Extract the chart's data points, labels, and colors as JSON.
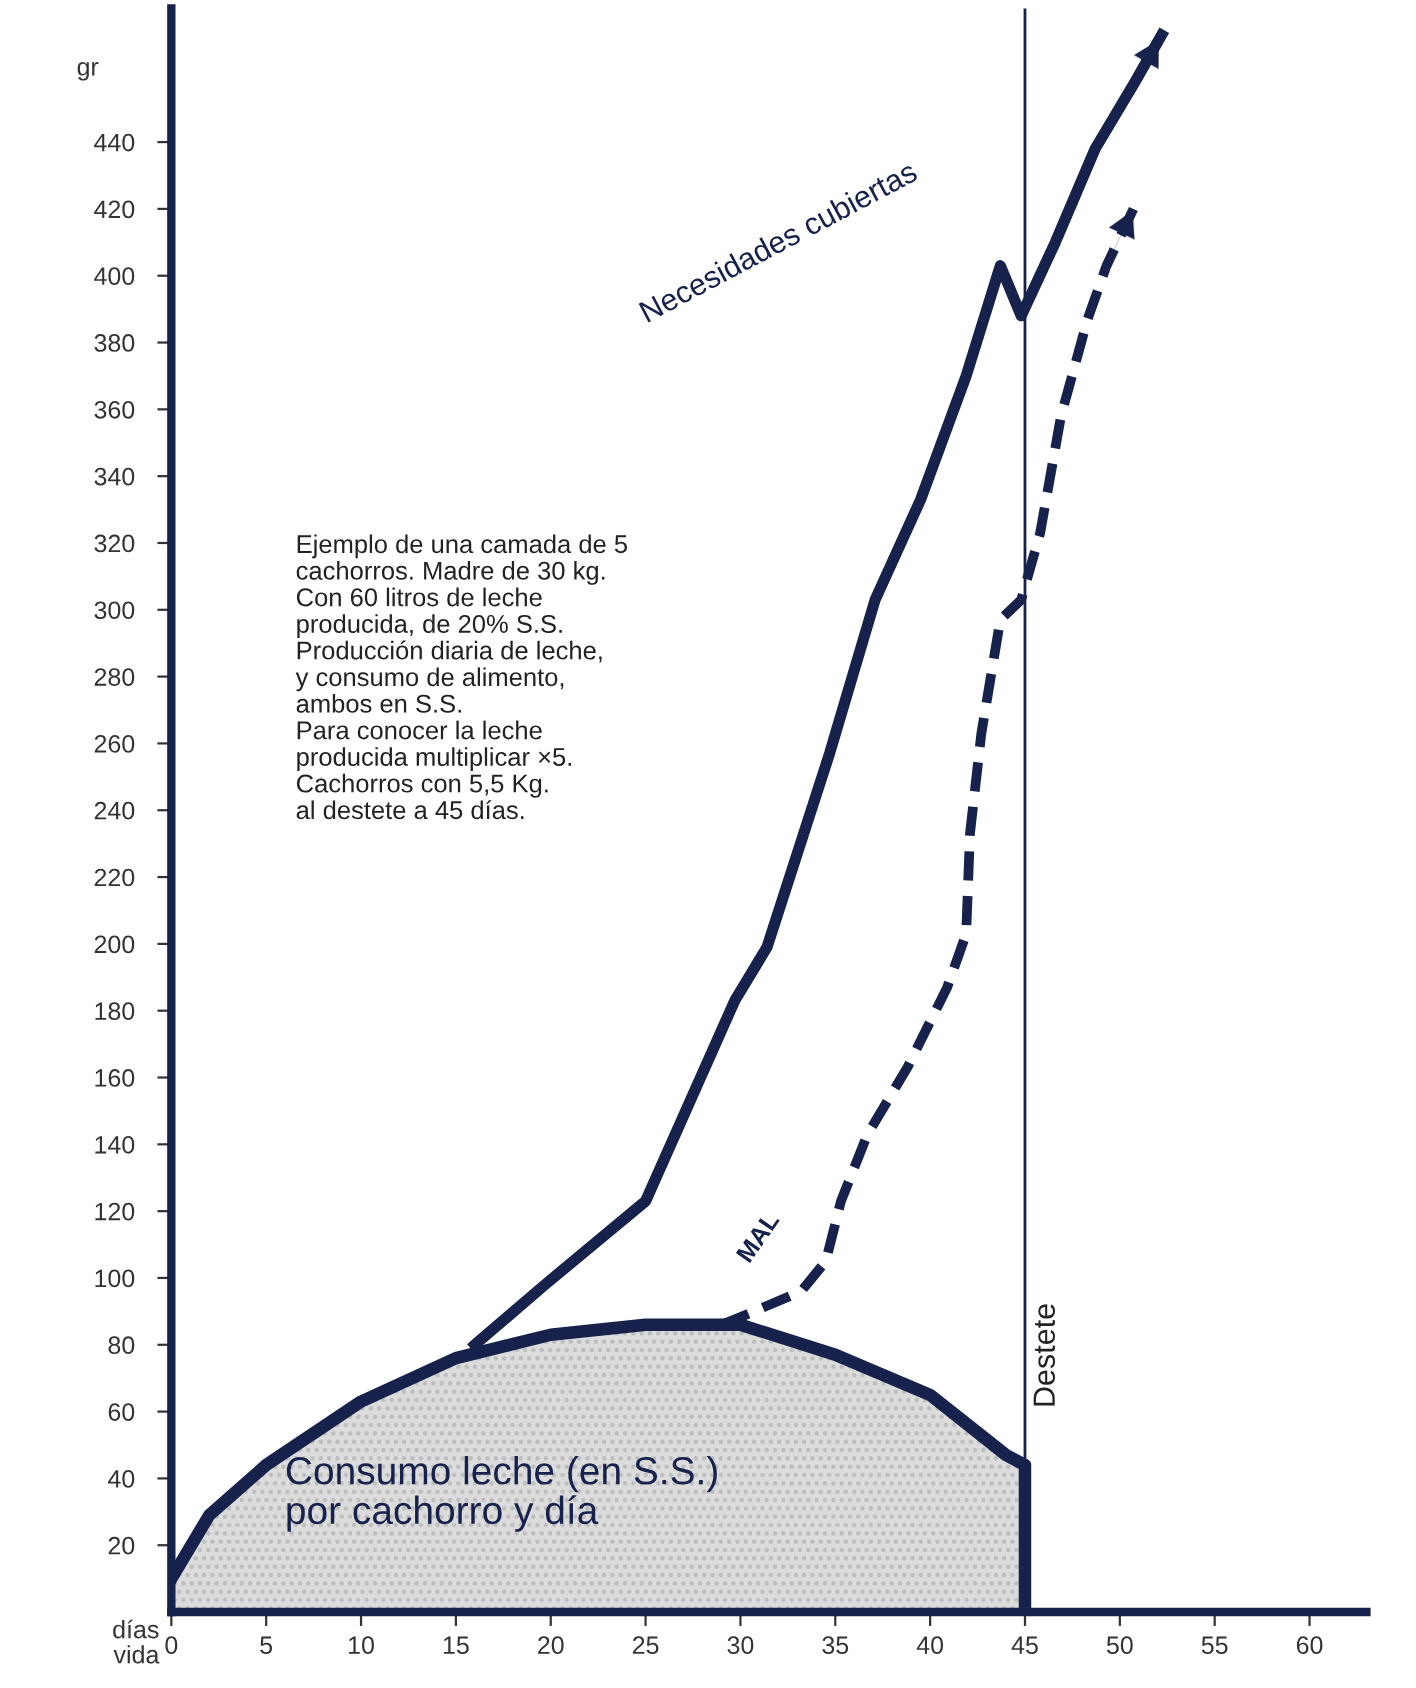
{
  "chart_data": {
    "type": "line",
    "xlabel": "días\nvida",
    "ylabel": "gr",
    "xlim": [
      0,
      63
    ],
    "xticks": [
      0,
      5,
      10,
      15,
      20,
      25,
      30,
      35,
      40,
      45,
      50,
      55,
      60
    ],
    "ylim": [
      0,
      480
    ],
    "yticks": [
      20,
      40,
      60,
      80,
      100,
      120,
      140,
      160,
      180,
      200,
      220,
      240,
      260,
      280,
      300,
      320,
      340,
      360,
      380,
      400,
      420,
      440
    ],
    "series": [
      {
        "name": "Consumo leche (en S.S.)\npor cachorro y día",
        "type": "area",
        "color": "#16224c",
        "x": [
          0,
          2,
          5,
          10,
          15,
          20,
          25,
          30,
          35,
          40,
          44,
          45,
          45
        ],
        "values": [
          10,
          29,
          44,
          63,
          76,
          83,
          86,
          86,
          77,
          65,
          47,
          44,
          0
        ]
      },
      {
        "name": "Necesidades cubiertas",
        "line_style": "solid",
        "color": "#16224c",
        "x": [
          16,
          19.7,
          25,
          29.7,
          31.4,
          34.7,
          37.1,
          39.5,
          41.9,
          43.7,
          44.8,
          46.6,
          48.7,
          50.8,
          52.2
        ],
        "values": [
          80,
          98,
          123,
          183,
          199,
          257,
          303,
          333,
          370,
          403,
          388,
          410,
          438,
          458,
          472
        ]
      },
      {
        "name": "MAL",
        "line_style": "dashed",
        "color": "#16224c",
        "x": [
          29,
          30.3,
          33.2,
          34.5,
          35.3,
          36.7,
          38.8,
          40.9,
          41.9,
          42.1,
          42.7,
          43.7,
          44.8,
          45.8,
          46.9,
          48.3,
          49.3,
          50.8
        ],
        "values": [
          86,
          89,
          96,
          105,
          123,
          143,
          163,
          187,
          203,
          233,
          263,
          297,
          303,
          323,
          358,
          387,
          403,
          421
        ]
      }
    ],
    "ref_lines": [
      {
        "axis": "x",
        "value": 45,
        "label": "Destete",
        "color": "#16224c"
      }
    ],
    "annotations": [
      "Ejemplo de una camada de 5\ncachorros. Madre de 30 kg.\nCon 60 litros de leche\nproducida, de 20% S.S.\nProducción diaria de leche,\ny consumo de alimento,\nambos en S.S.\nPara conocer la leche\nproducida multiplicar ×5.\nCachorros con 5,5 Kg.\nal destete a 45 días."
    ]
  }
}
